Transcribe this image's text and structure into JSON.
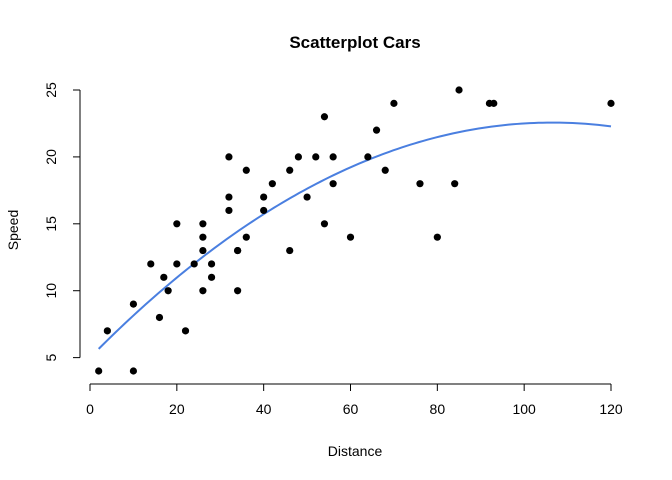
{
  "chart_data": {
    "type": "scatter",
    "title": "Scatterplot Cars",
    "xlabel": "Distance",
    "ylabel": "Speed",
    "xlim": [
      0,
      120
    ],
    "ylim": [
      4,
      25
    ],
    "xticks": [
      0,
      20,
      40,
      60,
      80,
      100,
      120
    ],
    "yticks": [
      5,
      10,
      15,
      20,
      25
    ],
    "grid": false,
    "point_color": "#000000",
    "curve_color": "#4a7fe0",
    "points": [
      [
        2,
        4
      ],
      [
        10,
        4
      ],
      [
        4,
        7
      ],
      [
        22,
        7
      ],
      [
        16,
        8
      ],
      [
        10,
        9
      ],
      [
        18,
        10
      ],
      [
        26,
        10
      ],
      [
        34,
        10
      ],
      [
        17,
        11
      ],
      [
        28,
        11
      ],
      [
        14,
        12
      ],
      [
        20,
        12
      ],
      [
        24,
        12
      ],
      [
        28,
        12
      ],
      [
        26,
        13
      ],
      [
        34,
        13
      ],
      [
        34,
        13
      ],
      [
        46,
        13
      ],
      [
        26,
        14
      ],
      [
        36,
        14
      ],
      [
        60,
        14
      ],
      [
        80,
        14
      ],
      [
        20,
        15
      ],
      [
        26,
        15
      ],
      [
        54,
        15
      ],
      [
        32,
        16
      ],
      [
        40,
        16
      ],
      [
        32,
        17
      ],
      [
        40,
        17
      ],
      [
        50,
        17
      ],
      [
        42,
        18
      ],
      [
        56,
        18
      ],
      [
        76,
        18
      ],
      [
        84,
        18
      ],
      [
        36,
        19
      ],
      [
        46,
        19
      ],
      [
        68,
        19
      ],
      [
        32,
        20
      ],
      [
        48,
        20
      ],
      [
        52,
        20
      ],
      [
        56,
        20
      ],
      [
        64,
        20
      ],
      [
        66,
        22
      ],
      [
        54,
        23
      ],
      [
        70,
        24
      ],
      [
        92,
        24
      ],
      [
        93,
        24
      ],
      [
        120,
        24
      ],
      [
        85,
        25
      ]
    ],
    "fit_curve": {
      "type": "quadratic",
      "x_range": [
        2,
        120
      ],
      "coefficients": [
        5.0,
        0.33,
        -0.00155
      ]
    }
  }
}
